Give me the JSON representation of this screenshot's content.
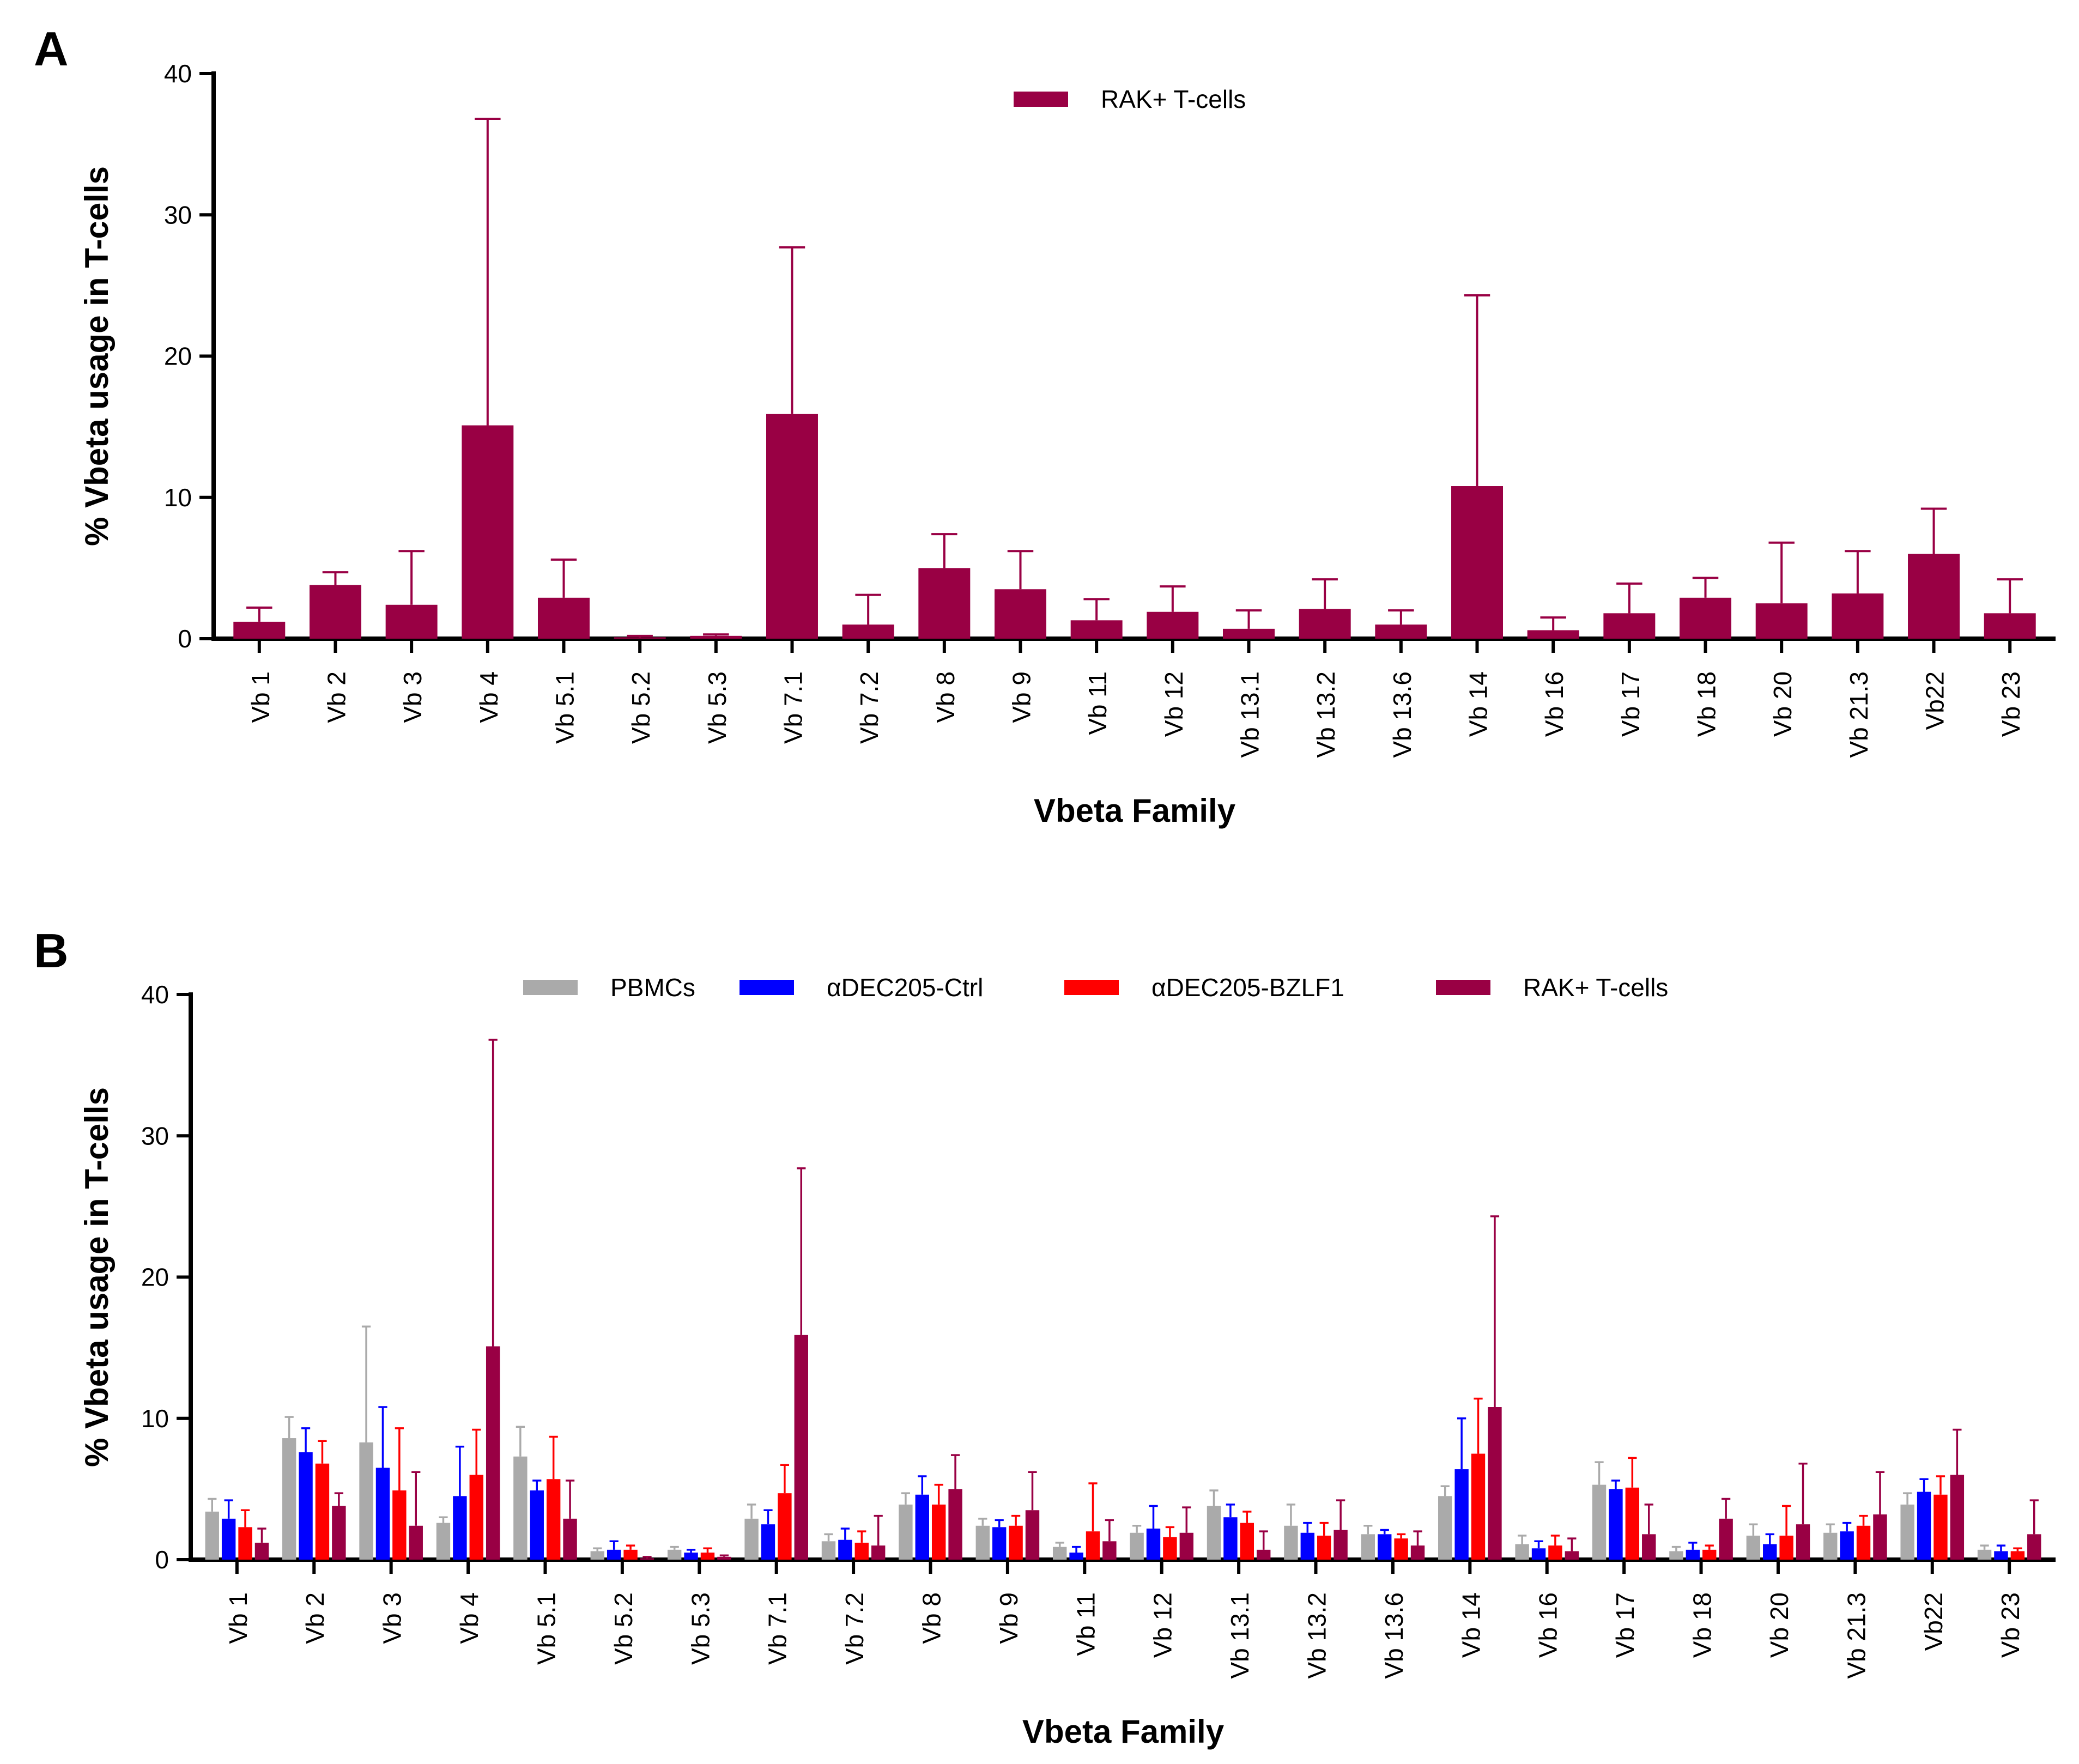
{
  "panels": [
    {
      "label": "A",
      "chart_data": {
        "type": "bar",
        "title": "",
        "xlabel": "Vbeta Family",
        "ylabel": "% Vbeta usage in T-cells",
        "ylim": [
          0,
          40
        ],
        "yticks": [
          0,
          10,
          20,
          30,
          40
        ],
        "grid": false,
        "legend_position": "top-center",
        "categories": [
          "Vb 1",
          "Vb 2",
          "Vb 3",
          "Vb 4",
          "Vb 5.1",
          "Vb 5.2",
          "Vb 5.3",
          "Vb 7.1",
          "Vb 7.2",
          "Vb 8",
          "Vb 9",
          "Vb 11",
          "Vb 12",
          "Vb 13.1",
          "Vb 13.2",
          "Vb 13.6",
          "Vb 14",
          "Vb 16",
          "Vb 17",
          "Vb 18",
          "Vb 20",
          "Vb 21.3",
          "Vb22",
          "Vb 23"
        ],
        "series": [
          {
            "name": "RAK+ T-cells",
            "color": "#990044",
            "values": [
              1.2,
              3.8,
              2.4,
              15.1,
              2.9,
              0.1,
              0.2,
              15.9,
              1.0,
              5.0,
              3.5,
              1.3,
              1.9,
              0.7,
              2.1,
              1.0,
              10.8,
              0.6,
              1.8,
              2.9,
              2.5,
              3.2,
              6.0,
              1.8
            ],
            "errors": [
              1.0,
              0.9,
              3.8,
              21.7,
              2.7,
              0.1,
              0.1,
              11.8,
              2.1,
              2.4,
              2.7,
              1.5,
              1.8,
              1.3,
              2.1,
              1.0,
              13.5,
              0.9,
              2.1,
              1.4,
              4.3,
              3.0,
              3.2,
              2.4
            ]
          }
        ]
      }
    },
    {
      "label": "B",
      "chart_data": {
        "type": "bar",
        "title": "",
        "xlabel": "Vbeta Family",
        "ylabel": "% Vbeta usage in T-cells",
        "ylim": [
          0,
          40
        ],
        "yticks": [
          0,
          10,
          20,
          30,
          40
        ],
        "grid": false,
        "legend_position": "top-center",
        "categories": [
          "Vb 1",
          "Vb 2",
          "Vb 3",
          "Vb 4",
          "Vb 5.1",
          "Vb 5.2",
          "Vb 5.3",
          "Vb 7.1",
          "Vb 7.2",
          "Vb 8",
          "Vb 9",
          "Vb 11",
          "Vb 12",
          "Vb 13.1",
          "Vb 13.2",
          "Vb 13.6",
          "Vb 14",
          "Vb 16",
          "Vb 17",
          "Vb 18",
          "Vb 20",
          "Vb 21.3",
          "Vb22",
          "Vb 23"
        ],
        "series": [
          {
            "name": "PBMCs",
            "color": "#aaaaaa",
            "values": [
              3.4,
              8.6,
              8.3,
              2.6,
              7.3,
              0.6,
              0.7,
              2.9,
              1.3,
              3.9,
              2.4,
              0.9,
              1.9,
              3.8,
              2.4,
              1.8,
              4.5,
              1.1,
              5.3,
              0.6,
              1.7,
              1.9,
              3.9,
              0.7
            ],
            "errors": [
              0.9,
              1.5,
              8.2,
              0.4,
              2.1,
              0.2,
              0.2,
              1.0,
              0.5,
              0.8,
              0.5,
              0.3,
              0.5,
              1.1,
              1.5,
              0.6,
              0.7,
              0.6,
              1.6,
              0.3,
              0.8,
              0.6,
              0.8,
              0.3
            ]
          },
          {
            "name": "αDEC205-Ctrl",
            "color": "#0000ff",
            "values": [
              2.9,
              7.6,
              6.5,
              4.5,
              4.9,
              0.7,
              0.5,
              2.5,
              1.4,
              4.6,
              2.3,
              0.5,
              2.2,
              3.0,
              1.9,
              1.8,
              6.4,
              0.8,
              5.0,
              0.7,
              1.1,
              2.0,
              4.8,
              0.6
            ],
            "errors": [
              1.3,
              1.7,
              4.3,
              3.5,
              0.7,
              0.6,
              0.2,
              1.0,
              0.8,
              1.3,
              0.5,
              0.4,
              1.6,
              0.9,
              0.7,
              0.3,
              3.6,
              0.5,
              0.6,
              0.5,
              0.7,
              0.6,
              0.9,
              0.4
            ]
          },
          {
            "name": "αDEC205-BZLF1",
            "color": "#ff0000",
            "values": [
              2.3,
              6.8,
              4.9,
              6.0,
              5.7,
              0.7,
              0.5,
              4.7,
              1.2,
              3.9,
              2.4,
              2.0,
              1.6,
              2.6,
              1.7,
              1.5,
              7.5,
              1.0,
              5.1,
              0.7,
              1.7,
              2.4,
              4.6,
              0.6
            ],
            "errors": [
              1.2,
              1.6,
              4.4,
              3.2,
              3.0,
              0.3,
              0.3,
              2.0,
              0.8,
              1.4,
              0.7,
              3.4,
              0.7,
              0.8,
              0.9,
              0.3,
              3.9,
              0.7,
              2.1,
              0.3,
              2.1,
              0.7,
              1.3,
              0.2
            ]
          },
          {
            "name": "RAK+ T-cells",
            "color": "#990044",
            "values": [
              1.2,
              3.8,
              2.4,
              15.1,
              2.9,
              0.1,
              0.2,
              15.9,
              1.0,
              5.0,
              3.5,
              1.3,
              1.9,
              0.7,
              2.1,
              1.0,
              10.8,
              0.6,
              1.8,
              2.9,
              2.5,
              3.2,
              6.0,
              1.8
            ],
            "errors": [
              1.0,
              0.9,
              3.8,
              21.7,
              2.7,
              0.1,
              0.1,
              11.8,
              2.1,
              2.4,
              2.7,
              1.5,
              1.8,
              1.3,
              2.1,
              1.0,
              13.5,
              0.9,
              2.1,
              1.4,
              4.3,
              3.0,
              3.2,
              2.4
            ]
          }
        ]
      }
    }
  ]
}
